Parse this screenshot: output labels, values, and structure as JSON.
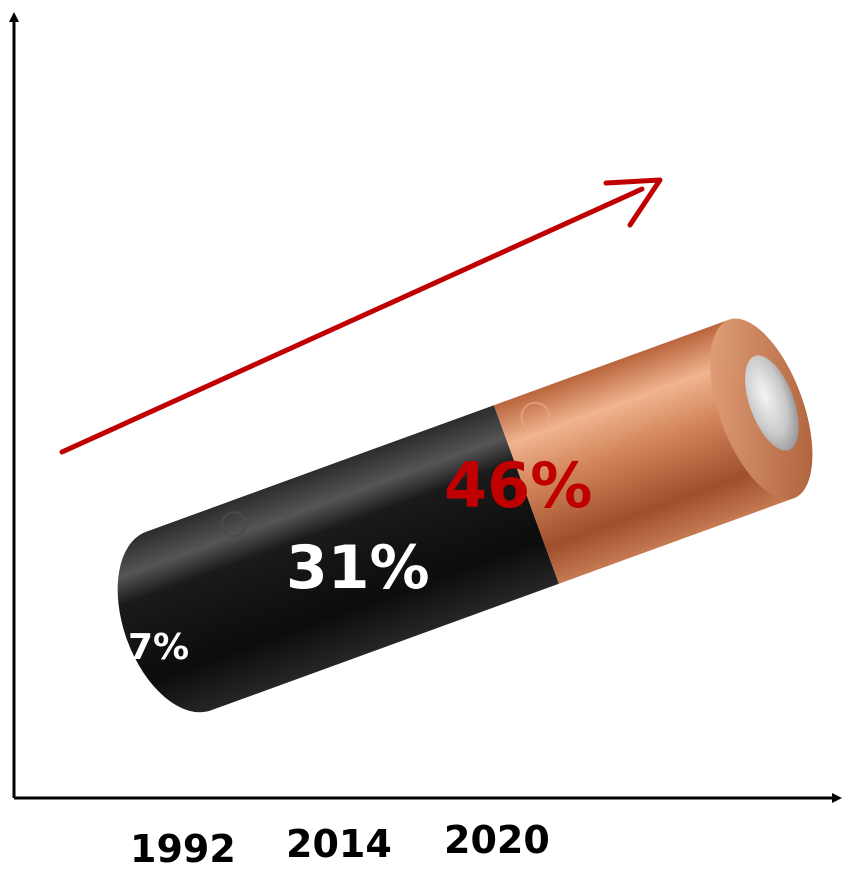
{
  "chart_data": {
    "type": "bar",
    "categories": [
      "1992",
      "2014",
      "2020"
    ],
    "values": [
      7,
      31,
      46
    ],
    "value_labels": [
      "7%",
      "31%",
      "46%"
    ],
    "title": "",
    "xlabel": "",
    "ylabel": "",
    "grid": false,
    "legend": "none",
    "colors": {
      "battery_body": "#111111",
      "battery_cap": "#c8784f",
      "highlight_label": "#c00000",
      "trend_arrow": "#c00000",
      "axis": "#000000",
      "label_white": "#ffffff"
    }
  }
}
